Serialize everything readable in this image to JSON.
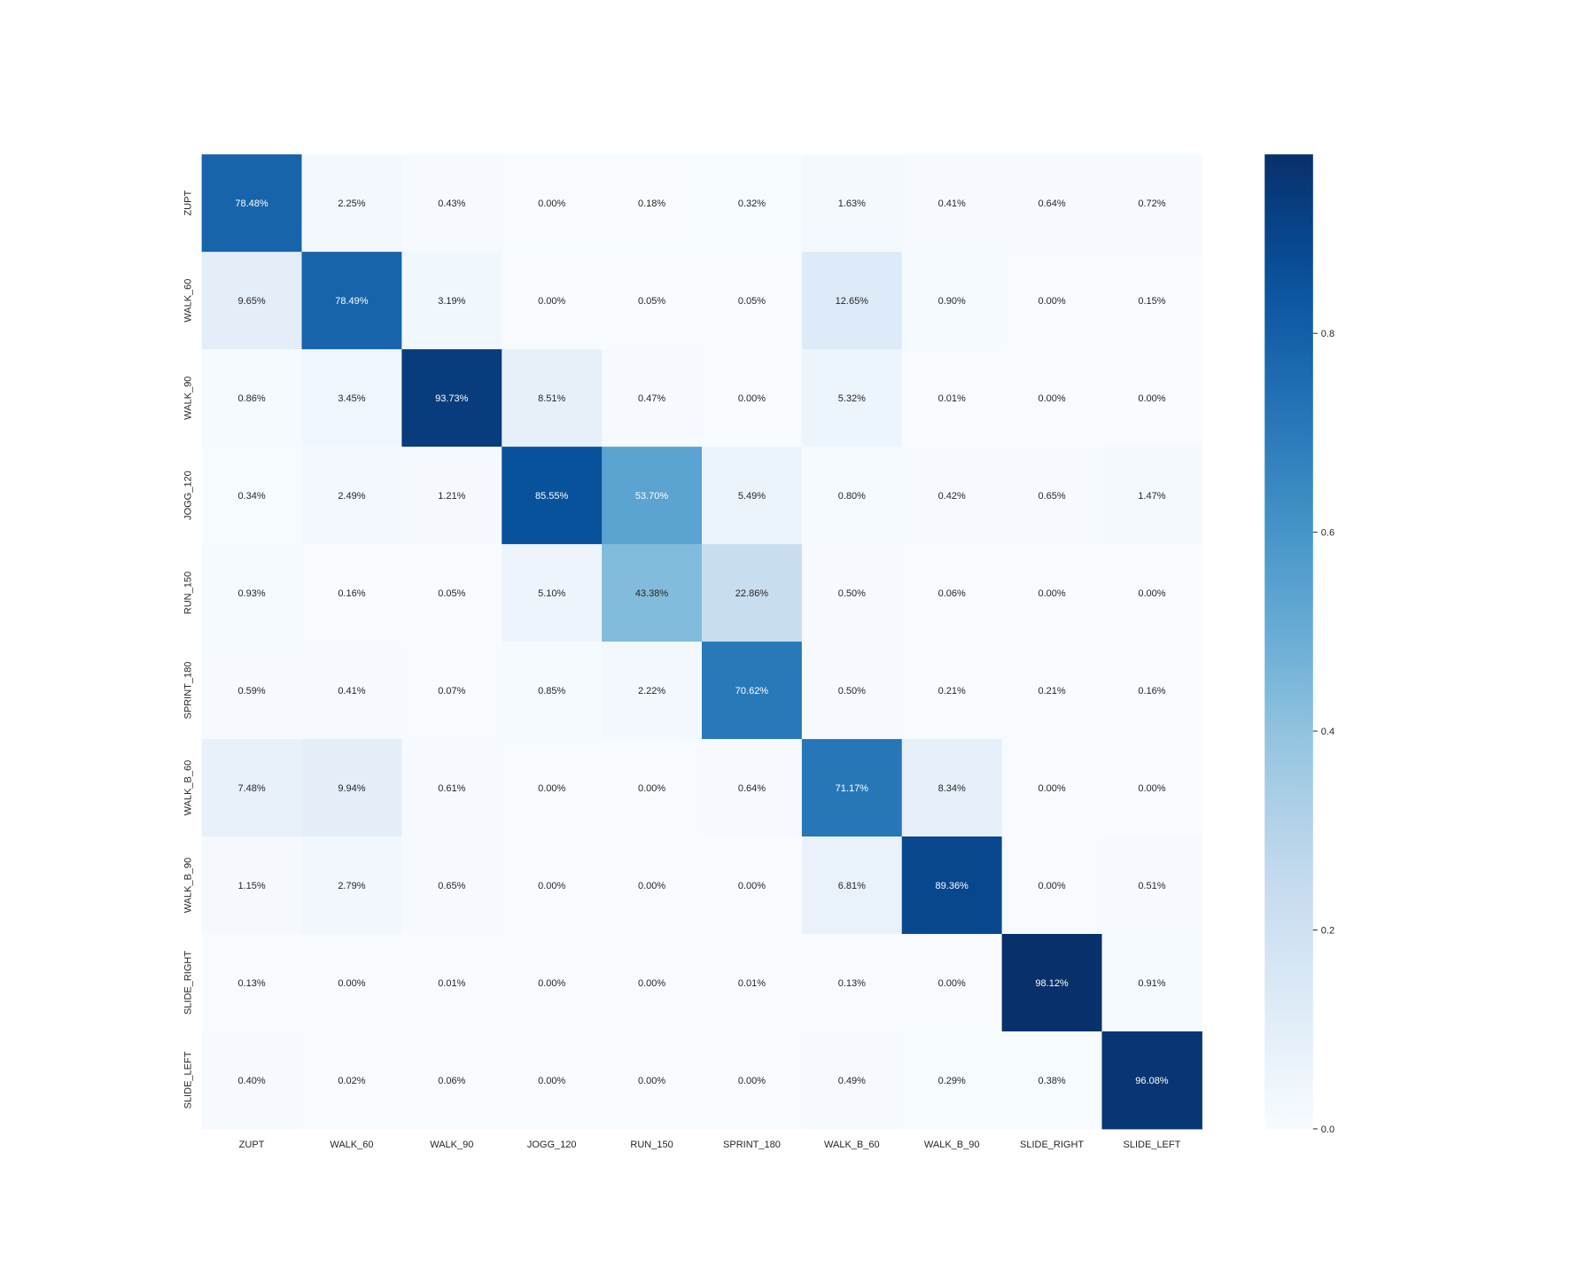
{
  "chart_data": {
    "type": "heatmap",
    "title": "",
    "xlabel": "",
    "ylabel": "",
    "colormap": "Blues",
    "value_range": [
      0,
      0.98
    ],
    "x_categories": [
      "ZUPT",
      "WALK_60",
      "WALK_90",
      "JOGG_120",
      "RUN_150",
      "SPRINT_180",
      "WALK_B_60",
      "WALK_B_90",
      "SLIDE_RIGHT",
      "SLIDE_LEFT"
    ],
    "y_categories": [
      "ZUPT",
      "WALK_60",
      "WALK_90",
      "JOGG_120",
      "RUN_150",
      "SPRINT_180",
      "WALK_B_60",
      "WALK_B_90",
      "SLIDE_RIGHT",
      "SLIDE_LEFT"
    ],
    "labels": [
      [
        "78.48%",
        "2.25%",
        "0.43%",
        "0.00%",
        "0.18%",
        "0.32%",
        "1.63%",
        "0.41%",
        "0.64%",
        "0.72%"
      ],
      [
        "9.65%",
        "78.49%",
        "3.19%",
        "0.00%",
        "0.05%",
        "0.05%",
        "12.65%",
        "0.90%",
        "0.00%",
        "0.15%"
      ],
      [
        "0.86%",
        "3.45%",
        "93.73%",
        "8.51%",
        "0.47%",
        "0.00%",
        "5.32%",
        "0.01%",
        "0.00%",
        "0.00%"
      ],
      [
        "0.34%",
        "2.49%",
        "1.21%",
        "85.55%",
        "53.70%",
        "5.49%",
        "0.80%",
        "0.42%",
        "0.65%",
        "1.47%"
      ],
      [
        "0.93%",
        "0.16%",
        "0.05%",
        "5.10%",
        "43.38%",
        "22.86%",
        "0.50%",
        "0.06%",
        "0.00%",
        "0.00%"
      ],
      [
        "0.59%",
        "0.41%",
        "0.07%",
        "0.85%",
        "2.22%",
        "70.62%",
        "0.50%",
        "0.21%",
        "0.21%",
        "0.16%"
      ],
      [
        "7.48%",
        "9.94%",
        "0.61%",
        "0.00%",
        "0.00%",
        "0.64%",
        "71.17%",
        "8.34%",
        "0.00%",
        "0.00%"
      ],
      [
        "1.15%",
        "2.79%",
        "0.65%",
        "0.00%",
        "0.00%",
        "0.00%",
        "6.81%",
        "89.36%",
        "0.00%",
        "0.51%"
      ],
      [
        "0.13%",
        "0.00%",
        "0.01%",
        "0.00%",
        "0.00%",
        "0.01%",
        "0.13%",
        "0.00%",
        "98.12%",
        "0.91%"
      ],
      [
        "0.40%",
        "0.02%",
        "0.06%",
        "0.00%",
        "0.00%",
        "0.00%",
        "0.49%",
        "0.29%",
        "0.38%",
        "96.08%"
      ]
    ],
    "colorbar": {
      "ticks": [
        "0.0",
        "0.2",
        "0.4",
        "0.6",
        "0.8"
      ],
      "range": [
        0,
        0.98
      ]
    },
    "grid": false
  }
}
